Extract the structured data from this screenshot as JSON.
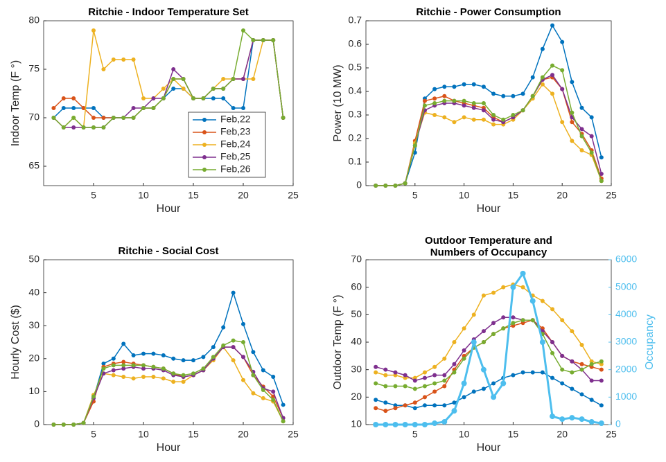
{
  "chart_data": [
    {
      "type": "line",
      "title": "Ritchie - Indoor Temperature Set",
      "xlabel": "Hour",
      "ylabel": "Indoor Temp (F °)",
      "x": [
        1,
        2,
        3,
        4,
        5,
        6,
        7,
        8,
        9,
        10,
        11,
        12,
        13,
        14,
        15,
        16,
        17,
        18,
        19,
        20,
        21,
        22,
        23,
        24
      ],
      "xlim": [
        0,
        25
      ],
      "xticks": [
        5,
        10,
        15,
        20,
        25
      ],
      "ylim": [
        63,
        80
      ],
      "yticks": [
        65,
        70,
        75,
        80
      ],
      "legend": "lower-right",
      "series": [
        {
          "name": "Feb,22",
          "color": "#0072bd",
          "values": [
            70,
            71,
            71,
            71,
            71,
            70,
            70,
            70,
            70,
            71,
            71,
            72,
            73,
            73,
            72,
            72,
            72,
            72,
            71,
            71,
            78,
            78,
            78,
            70
          ]
        },
        {
          "name": "Feb,23",
          "color": "#d95319",
          "values": [
            71,
            72,
            72,
            71,
            70,
            70,
            70,
            70,
            70,
            71,
            71,
            72,
            74,
            74,
            72,
            72,
            73,
            73,
            74,
            74,
            78,
            78,
            78,
            70
          ]
        },
        {
          "name": "Feb,24",
          "color": "#edb120",
          "values": [
            70,
            69,
            70,
            69,
            79,
            75,
            76,
            76,
            76,
            72,
            72,
            73,
            74,
            73,
            72,
            72,
            73,
            74,
            74,
            74,
            74,
            78,
            78,
            70
          ]
        },
        {
          "name": "Feb,25",
          "color": "#7e2f8e",
          "values": [
            70,
            69,
            69,
            69,
            69,
            69,
            70,
            70,
            71,
            71,
            72,
            72,
            75,
            74,
            72,
            72,
            73,
            73,
            74,
            74,
            78,
            78,
            78,
            70
          ]
        },
        {
          "name": "Feb,26",
          "color": "#77ac30",
          "values": [
            70,
            69,
            70,
            69,
            69,
            69,
            70,
            70,
            70,
            71,
            71,
            72,
            74,
            74,
            72,
            72,
            73,
            73,
            74,
            79,
            78,
            78,
            78,
            70
          ]
        }
      ]
    },
    {
      "type": "line",
      "title": "Ritchie - Power Consumption",
      "xlabel": "Hour",
      "ylabel": "Power (10 MW)",
      "x": [
        1,
        2,
        3,
        4,
        5,
        6,
        7,
        8,
        9,
        10,
        11,
        12,
        13,
        14,
        15,
        16,
        17,
        18,
        19,
        20,
        21,
        22,
        23,
        24
      ],
      "xlim": [
        0,
        25
      ],
      "xticks": [
        5,
        10,
        15,
        20,
        25
      ],
      "ylim": [
        0,
        0.7
      ],
      "yticks": [
        0,
        0.1,
        0.2,
        0.3,
        0.4,
        0.5,
        0.6,
        0.7
      ],
      "series": [
        {
          "color": "#0072bd",
          "values": [
            0,
            0,
            0,
            0.01,
            0.14,
            0.37,
            0.41,
            0.42,
            0.42,
            0.43,
            0.43,
            0.42,
            0.39,
            0.38,
            0.38,
            0.39,
            0.46,
            0.58,
            0.68,
            0.61,
            0.44,
            0.33,
            0.29,
            0.12
          ]
        },
        {
          "color": "#d95319",
          "values": [
            0,
            0,
            0,
            0.01,
            0.19,
            0.36,
            0.37,
            0.38,
            0.36,
            0.35,
            0.34,
            0.33,
            0.29,
            0.27,
            0.29,
            0.32,
            0.38,
            0.45,
            0.46,
            0.41,
            0.27,
            0.22,
            0.15,
            0.03
          ]
        },
        {
          "color": "#edb120",
          "values": [
            0,
            0,
            0,
            0.01,
            0.18,
            0.31,
            0.3,
            0.29,
            0.27,
            0.29,
            0.28,
            0.28,
            0.26,
            0.26,
            0.28,
            0.32,
            0.37,
            0.43,
            0.39,
            0.27,
            0.19,
            0.15,
            0.13,
            0.02
          ]
        },
        {
          "color": "#7e2f8e",
          "values": [
            0,
            0,
            0,
            0.01,
            0.17,
            0.32,
            0.34,
            0.35,
            0.35,
            0.34,
            0.33,
            0.32,
            0.28,
            0.27,
            0.29,
            0.32,
            0.38,
            0.45,
            0.47,
            0.41,
            0.29,
            0.24,
            0.21,
            0.05
          ]
        },
        {
          "color": "#77ac30",
          "values": [
            0,
            0,
            0,
            0.01,
            0.17,
            0.34,
            0.35,
            0.36,
            0.36,
            0.36,
            0.35,
            0.35,
            0.3,
            0.28,
            0.3,
            0.32,
            0.38,
            0.46,
            0.51,
            0.49,
            0.31,
            0.21,
            0.14,
            0.02
          ]
        }
      ]
    },
    {
      "type": "line",
      "title": "Ritchie - Social Cost",
      "xlabel": "Hour",
      "ylabel": "Hourly Cost ($)",
      "x": [
        1,
        2,
        3,
        4,
        5,
        6,
        7,
        8,
        9,
        10,
        11,
        12,
        13,
        14,
        15,
        16,
        17,
        18,
        19,
        20,
        21,
        22,
        23,
        24
      ],
      "xlim": [
        0,
        25
      ],
      "xticks": [
        5,
        10,
        15,
        20,
        25
      ],
      "ylim": [
        0,
        50
      ],
      "yticks": [
        0,
        10,
        20,
        30,
        40,
        50
      ],
      "series": [
        {
          "color": "#0072bd",
          "values": [
            0,
            0,
            0,
            0.5,
            8,
            18.5,
            20,
            24.5,
            21,
            21.5,
            21.5,
            21,
            20,
            19.5,
            19.5,
            20.5,
            23.5,
            29.5,
            40,
            30.5,
            22,
            16.5,
            14.5,
            6
          ]
        },
        {
          "color": "#d95319",
          "values": [
            0,
            0,
            0,
            0.5,
            7,
            17.5,
            18.5,
            19,
            18.5,
            18,
            17.5,
            17,
            15.5,
            14.5,
            15,
            16.5,
            20,
            23.5,
            23.5,
            20.5,
            15,
            11.5,
            8.5,
            2
          ]
        },
        {
          "color": "#edb120",
          "values": [
            0,
            0,
            0,
            0.5,
            9,
            15.5,
            15,
            14.5,
            14,
            14.5,
            14.5,
            14,
            13,
            13,
            15,
            16.5,
            19.5,
            23.5,
            19.5,
            13.5,
            9.5,
            8,
            7,
            1
          ]
        },
        {
          "color": "#7e2f8e",
          "values": [
            0,
            0,
            0,
            0.5,
            8,
            15.5,
            16.5,
            17,
            17.5,
            17,
            17,
            16.5,
            15,
            14.5,
            15,
            16.5,
            20,
            23.5,
            23.5,
            20.5,
            16,
            11,
            10,
            2
          ]
        },
        {
          "color": "#77ac30",
          "values": [
            0,
            0,
            0,
            0.5,
            8.5,
            17,
            18,
            18,
            18,
            18,
            17.5,
            17,
            15.5,
            15,
            15.5,
            17,
            20.5,
            24,
            25.5,
            25,
            15,
            10.5,
            7.5,
            1
          ]
        }
      ]
    },
    {
      "type": "line",
      "title": [
        "Outdoor Temperature and",
        "Numbers of Occupancy"
      ],
      "xlabel": "Hour",
      "ylabel": "Outdoor Temp (F °)",
      "y2label": "Occupancy",
      "x": [
        1,
        2,
        3,
        4,
        5,
        6,
        7,
        8,
        9,
        10,
        11,
        12,
        13,
        14,
        15,
        16,
        17,
        18,
        19,
        20,
        21,
        22,
        23,
        24
      ],
      "xlim": [
        0,
        25
      ],
      "xticks": [
        5,
        10,
        15,
        20,
        25
      ],
      "ylim": [
        10,
        70
      ],
      "yticks": [
        10,
        20,
        30,
        40,
        50,
        60,
        70
      ],
      "y2lim": [
        0,
        6000
      ],
      "y2ticks": [
        0,
        1000,
        2000,
        3000,
        4000,
        5000,
        6000
      ],
      "y2color": "#4dbeee",
      "series": [
        {
          "color": "#0072bd",
          "values": [
            19,
            18,
            17,
            17,
            16,
            17,
            17,
            17,
            18,
            20,
            22,
            23,
            25,
            27,
            28,
            29,
            29,
            29,
            27,
            25,
            23,
            21,
            19,
            17
          ]
        },
        {
          "color": "#d95319",
          "values": [
            16,
            15,
            16,
            17,
            18,
            20,
            22,
            24,
            30,
            35,
            38,
            40,
            43,
            45,
            46,
            47,
            48,
            45,
            40,
            35,
            33,
            32,
            31,
            30
          ]
        },
        {
          "color": "#edb120",
          "values": [
            29,
            28,
            28,
            27,
            27,
            29,
            31,
            34,
            40,
            45,
            50,
            57,
            58,
            60,
            61,
            60,
            57,
            55,
            52,
            48,
            44,
            39,
            33,
            32
          ]
        },
        {
          "color": "#7e2f8e",
          "values": [
            31,
            30,
            29,
            28,
            26,
            27,
            28,
            28,
            32,
            37,
            41,
            44,
            47,
            49,
            49,
            48,
            48,
            44,
            40,
            35,
            33,
            30,
            26,
            26
          ]
        },
        {
          "color": "#77ac30",
          "values": [
            25,
            24,
            24,
            24,
            23,
            24,
            25,
            26,
            29,
            34,
            38,
            40,
            43,
            45,
            47,
            48,
            48,
            43,
            36,
            30,
            29,
            30,
            32,
            33
          ]
        },
        {
          "color": "#4dbeee",
          "axis": "y2",
          "values": [
            0,
            0,
            0,
            0,
            0,
            0,
            50,
            100,
            500,
            1500,
            3000,
            2000,
            1000,
            1500,
            5000,
            5500,
            4500,
            3000,
            300,
            200,
            250,
            200,
            100,
            50
          ]
        }
      ]
    }
  ]
}
